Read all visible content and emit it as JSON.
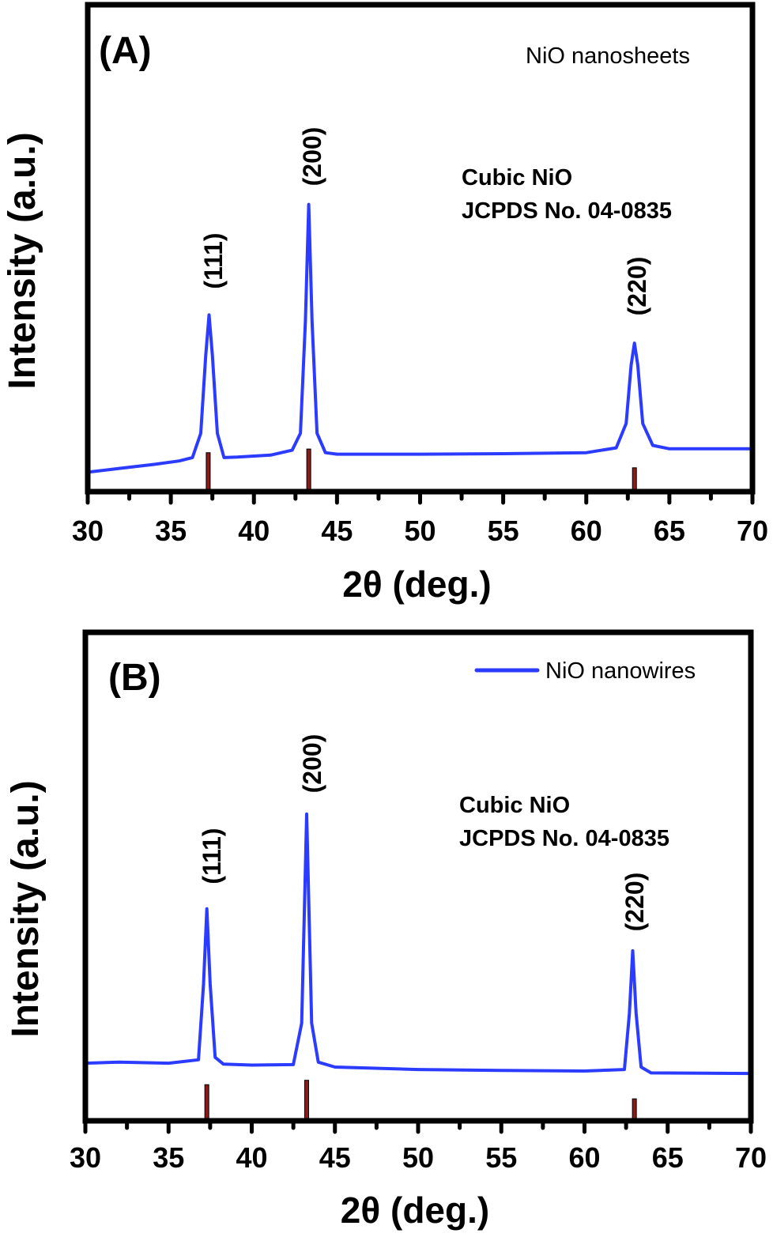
{
  "chart_data": [
    {
      "type": "line",
      "panel_label": "(A)",
      "title": "NiO nanosheets",
      "annotation": [
        "Cubic NiO",
        "JCPDS No. 04-0835"
      ],
      "xlabel": "2θ (deg.)",
      "ylabel": "Intensity (a.u.)",
      "xlim": [
        30,
        70
      ],
      "ylim": [
        0,
        100
      ],
      "xticks": [
        "30",
        "35",
        "40",
        "45",
        "50",
        "55",
        "60",
        "65",
        "70"
      ],
      "grid": false,
      "series_color": "#2b3bff",
      "reference_color": "#8b1a1a",
      "series": [
        {
          "x": [
            30,
            32,
            34,
            35.5,
            36.3,
            36.8,
            37.1,
            37.3,
            37.5,
            37.8,
            38.2,
            39,
            41,
            42.3,
            42.8,
            43.1,
            43.3,
            43.5,
            43.8,
            44.3,
            45,
            50,
            55,
            60,
            61.8,
            62.4,
            62.7,
            62.9,
            63.1,
            63.4,
            64,
            65,
            70
          ],
          "y": [
            4,
            4.8,
            5.6,
            6.3,
            7,
            12,
            28,
            36.3,
            28,
            12,
            7,
            7.1,
            7.5,
            8.5,
            12,
            35,
            59,
            35,
            12,
            8,
            7.7,
            7.7,
            7.8,
            8,
            9,
            14,
            26,
            30.5,
            26,
            14,
            9.5,
            8.8,
            8.8
          ]
        }
      ],
      "peaks": [
        {
          "label": "(111)",
          "x": 37.3
        },
        {
          "label": "(200)",
          "x": 43.3
        },
        {
          "label": "(220)",
          "x": 62.9
        }
      ],
      "reference_lines": [
        {
          "x": 37.25,
          "height": 8
        },
        {
          "x": 43.3,
          "height": 8.75
        },
        {
          "x": 62.9,
          "height": 4.9
        }
      ]
    },
    {
      "type": "line",
      "panel_label": "(B)",
      "legend": [
        {
          "name": "NiO nanowires",
          "color": "#2b3bff"
        }
      ],
      "legend_position": "top-right",
      "annotation": [
        "Cubic NiO",
        "JCPDS No. 04-0835"
      ],
      "xlabel": "2θ (deg.)",
      "ylabel": "Intensity (a.u.)",
      "xlim": [
        30,
        70
      ],
      "ylim": [
        0,
        100
      ],
      "xticks": [
        "30",
        "35",
        "40",
        "45",
        "50",
        "55",
        "60",
        "65",
        "70"
      ],
      "grid": false,
      "series_color": "#2b3bff",
      "reference_color": "#8b1a1a",
      "series": [
        {
          "name": "NiO nanowires",
          "x": [
            30,
            32,
            35,
            36.8,
            37.1,
            37.3,
            37.5,
            37.8,
            38.3,
            40,
            42.5,
            43,
            43.3,
            43.6,
            44,
            45,
            50,
            55,
            60,
            62.4,
            62.7,
            62.9,
            63.1,
            63.4,
            64,
            70
          ],
          "y": [
            11.8,
            12,
            11.8,
            12.5,
            28,
            43.4,
            28,
            13,
            11.6,
            11.4,
            11.5,
            20,
            62.8,
            20,
            12,
            11,
            10.5,
            10.3,
            10.2,
            10.5,
            22,
            34.8,
            22,
            11,
            9.8,
            9.7
          ]
        }
      ],
      "peaks": [
        {
          "label": "(111)",
          "x": 37.3
        },
        {
          "label": "(200)",
          "x": 43.3
        },
        {
          "label": "(220)",
          "x": 62.9
        }
      ],
      "reference_lines": [
        {
          "x": 37.3,
          "height": 7.4
        },
        {
          "x": 43.3,
          "height": 8.3
        },
        {
          "x": 63.0,
          "height": 4.5
        }
      ]
    }
  ]
}
